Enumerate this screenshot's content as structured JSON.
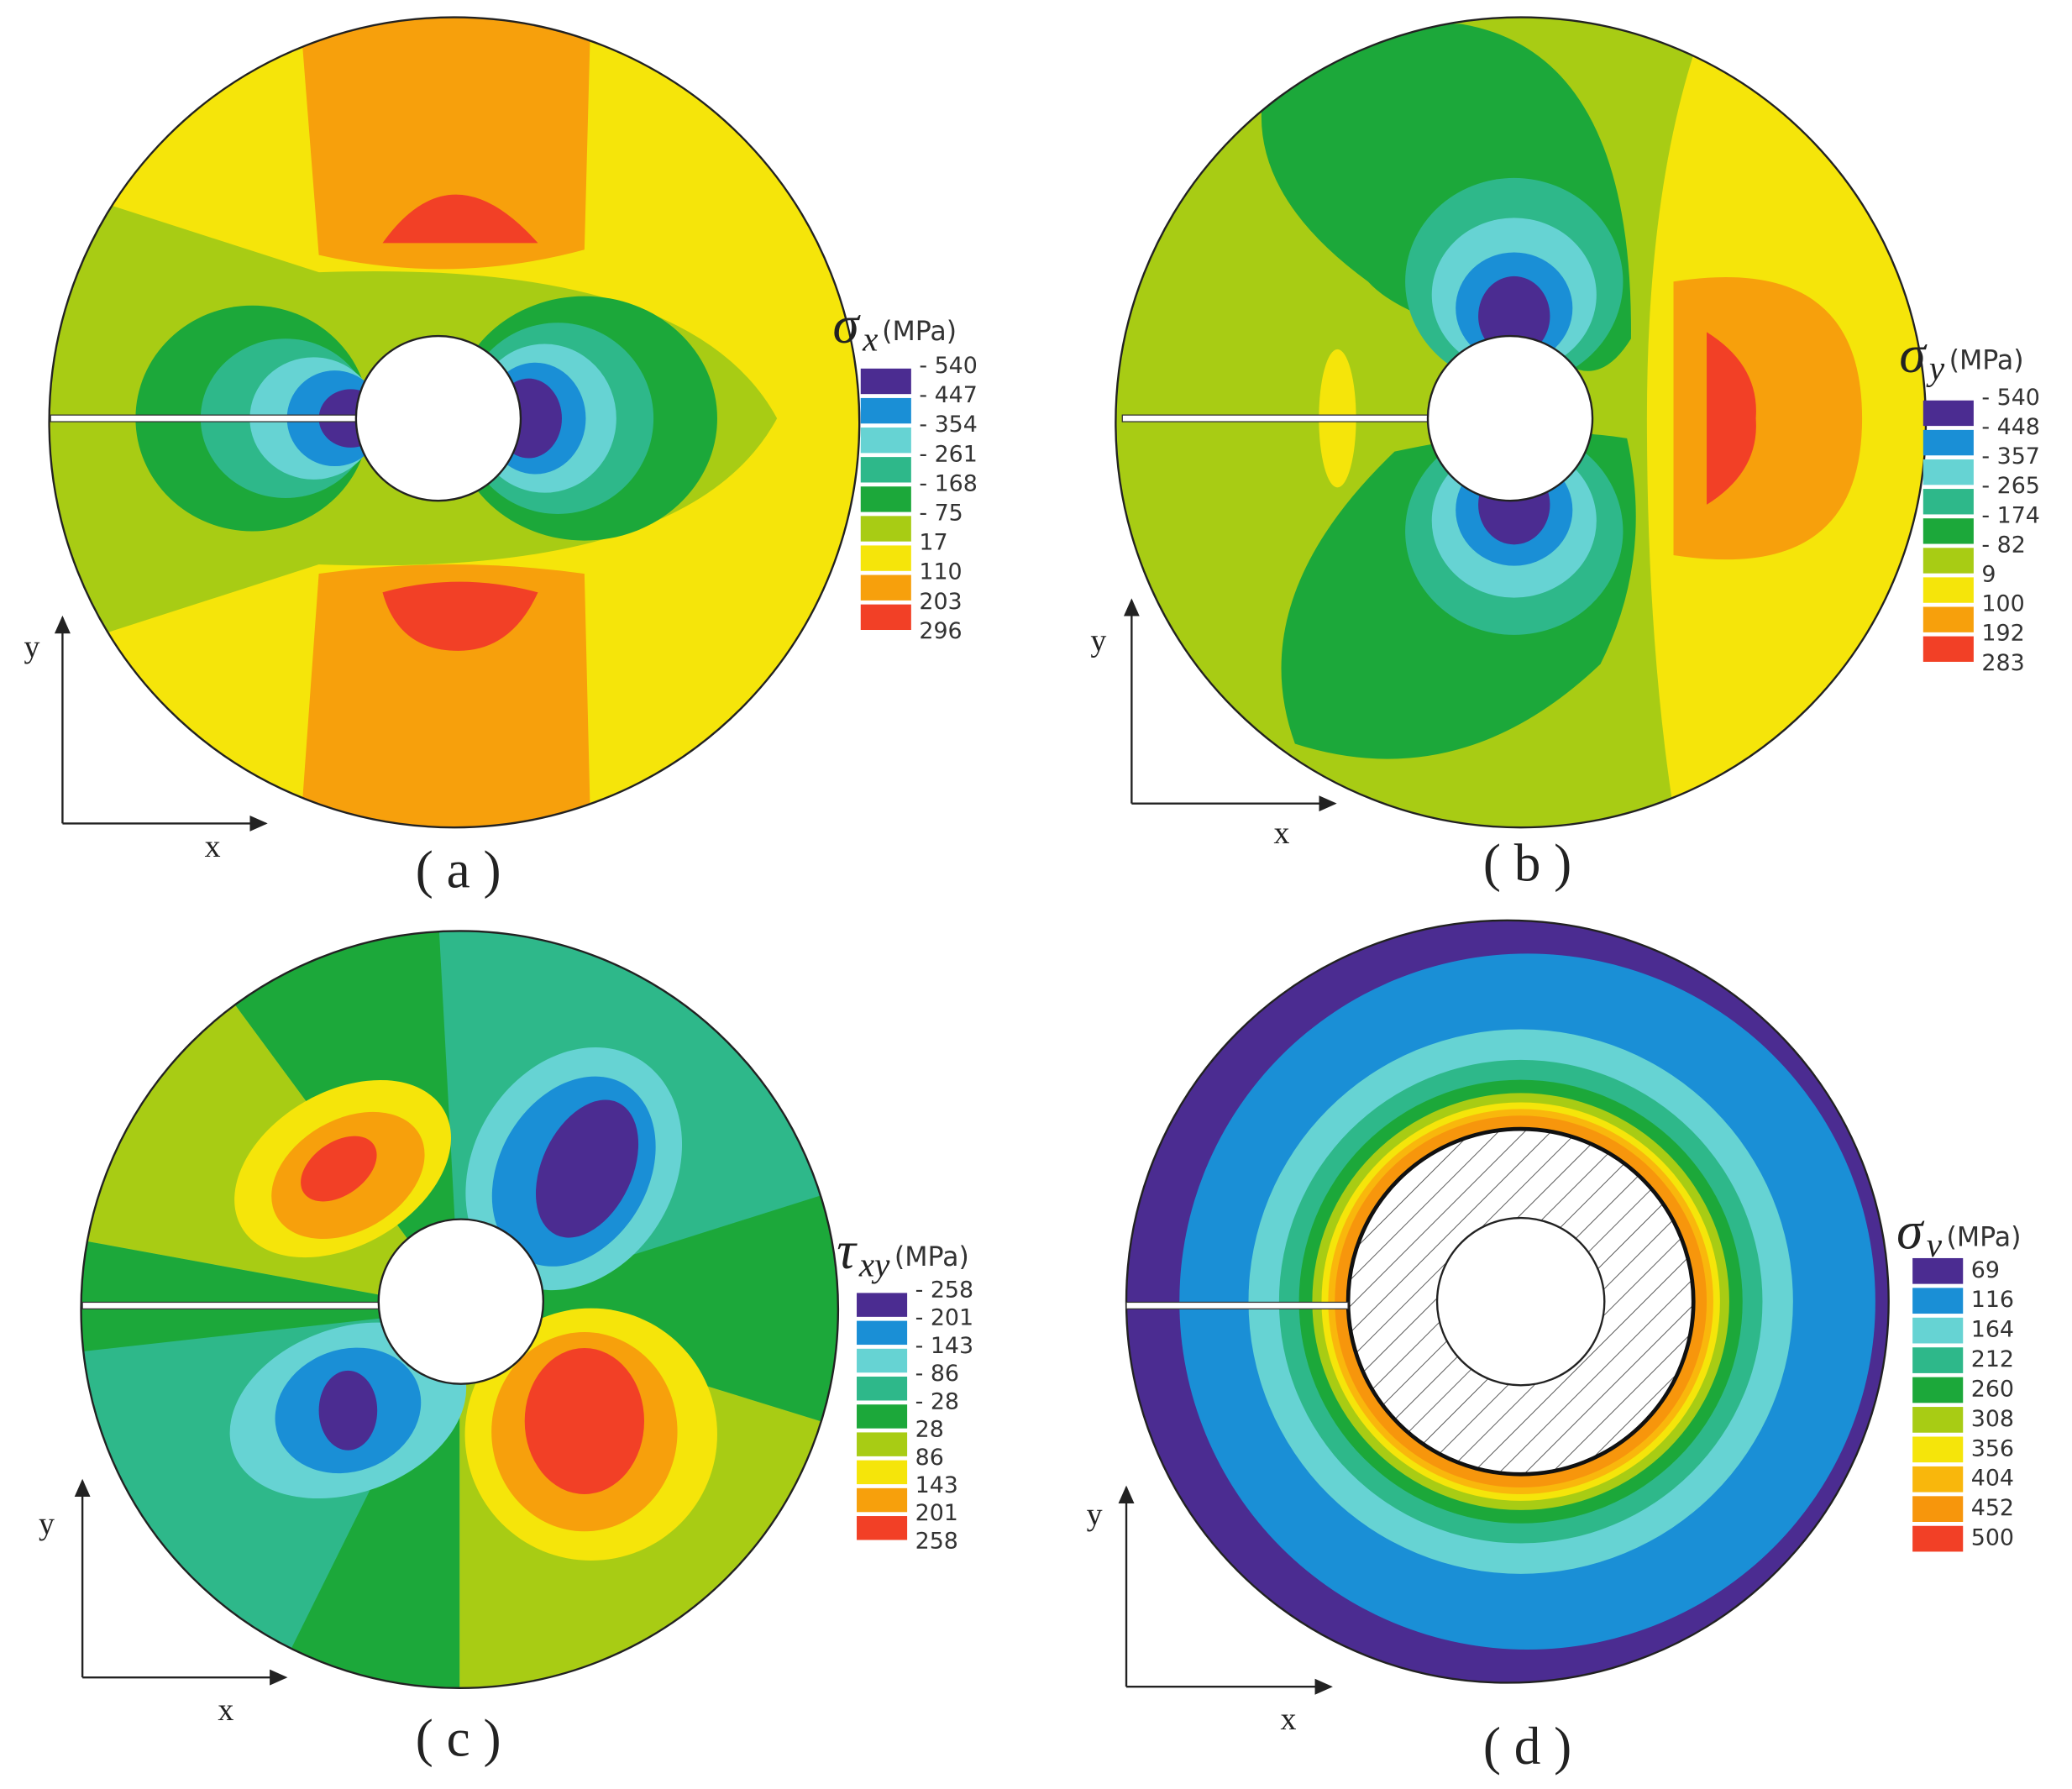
{
  "panels": [
    {
      "caption": "( a )",
      "symbol": "σ",
      "subscript": "x",
      "unit": "(MPa)",
      "axis_x": "x",
      "axis_y": "y",
      "levels": [
        "- 540",
        "- 447",
        "- 354",
        "- 261",
        "- 168",
        "- 75",
        "17",
        "110",
        "203",
        "296"
      ],
      "colors": [
        "#4b2c91",
        "#1a8fd6",
        "#66d3d3",
        "#2eb88a",
        "#1ca83a",
        "#a8cc14",
        "#f5e50a",
        "#f7a00c",
        "#f24026"
      ]
    },
    {
      "caption": "( b )",
      "symbol": "σ",
      "subscript": "y",
      "unit": "(MPa)",
      "axis_x": "x",
      "axis_y": "y",
      "levels": [
        "- 540",
        "- 448",
        "- 357",
        "- 265",
        "- 174",
        "- 82",
        "9",
        "100",
        "192",
        "283"
      ],
      "colors": [
        "#4b2c91",
        "#1a8fd6",
        "#66d3d3",
        "#2eb88a",
        "#1ca83a",
        "#a8cc14",
        "#f5e50a",
        "#f7a00c",
        "#f24026"
      ]
    },
    {
      "caption": "( c )",
      "symbol": "τ",
      "subscript": "xy",
      "unit": "(MPa)",
      "axis_x": "x",
      "axis_y": "y",
      "levels": [
        "- 258",
        "- 201",
        "- 143",
        "- 86",
        "- 28",
        "28",
        "86",
        "143",
        "201",
        "258"
      ],
      "colors": [
        "#4b2c91",
        "#1a8fd6",
        "#66d3d3",
        "#2eb88a",
        "#1ca83a",
        "#a8cc14",
        "#f5e50a",
        "#f7a00c",
        "#f24026"
      ]
    },
    {
      "caption": "( d )",
      "symbol": "σ",
      "subscript": "v",
      "unit": "(MPa)",
      "axis_x": "x",
      "axis_y": "y",
      "levels": [
        "69",
        "116",
        "164",
        "212",
        "260",
        "308",
        "356",
        "404",
        "452",
        "500"
      ],
      "colors": [
        "#4b2c91",
        "#1a8fd6",
        "#66d3d3",
        "#2eb88a",
        "#1ca83a",
        "#a8cc14",
        "#f5e50a",
        "#f9b70c",
        "#f7960c",
        "#f24026"
      ]
    }
  ]
}
